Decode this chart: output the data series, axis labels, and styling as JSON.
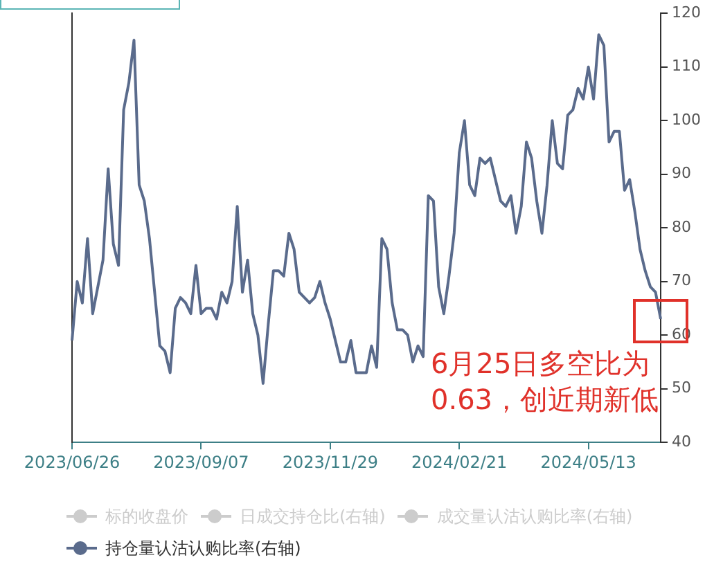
{
  "chart_data": {
    "type": "line",
    "categories": [
      "2023/06/26",
      null,
      null,
      null,
      null,
      null,
      null,
      null,
      null,
      null,
      null,
      null,
      null,
      null,
      null,
      null,
      null,
      null,
      null,
      null,
      null,
      null,
      null,
      null,
      null,
      "2023/09/07",
      null,
      null,
      null,
      null,
      null,
      null,
      null,
      null,
      null,
      null,
      null,
      null,
      null,
      null,
      null,
      null,
      null,
      null,
      null,
      null,
      null,
      null,
      null,
      null,
      "2023/11/29",
      null,
      null,
      null,
      null,
      null,
      null,
      null,
      null,
      null,
      null,
      null,
      null,
      null,
      null,
      null,
      null,
      null,
      null,
      null,
      null,
      null,
      null,
      null,
      null,
      "2024/02/21",
      null,
      null,
      null,
      null,
      null,
      null,
      null,
      null,
      null,
      null,
      null,
      null,
      null,
      null,
      null,
      null,
      null,
      null,
      null,
      null,
      null,
      null,
      null,
      null,
      "2024/05/13",
      null,
      null,
      null,
      null,
      null,
      null,
      null,
      null,
      null,
      null,
      null,
      null,
      null,
      null
    ],
    "series": [
      {
        "name": "标的收盘价",
        "color": "#cccccc",
        "values": [
          null,
          null,
          null,
          null,
          null,
          null,
          null,
          null,
          null,
          null,
          null,
          null,
          null,
          null,
          null,
          null,
          null,
          null,
          null,
          null,
          null,
          null,
          null,
          null,
          null,
          null,
          null,
          null,
          null,
          null,
          null,
          null,
          null,
          null,
          null,
          null,
          null,
          null,
          null,
          null,
          null,
          null,
          null,
          null,
          null,
          null,
          null,
          null,
          null,
          null,
          null,
          null,
          null,
          null,
          null,
          null,
          null,
          null,
          null,
          null,
          null,
          null,
          null,
          null,
          null,
          null,
          null,
          null,
          null,
          null,
          null,
          null,
          null,
          null,
          null,
          null,
          null,
          null,
          null,
          null,
          null,
          null,
          null,
          null,
          null,
          null,
          null,
          null,
          null,
          null,
          null,
          null,
          null,
          null,
          null,
          null,
          null,
          null,
          null,
          null,
          null,
          null,
          null,
          null,
          null,
          null,
          null,
          null,
          null,
          null,
          null,
          null,
          null,
          null,
          null
        ]
      },
      {
        "name": "日成交持仓比(右轴)",
        "color": "#cccccc",
        "axis": "y2",
        "values": [
          null,
          null,
          null,
          null,
          null,
          null,
          null,
          null,
          null,
          null,
          null,
          null,
          null,
          null,
          null,
          null,
          null,
          null,
          null,
          null,
          null,
          null,
          null,
          null,
          null,
          null,
          null,
          null,
          null,
          null,
          null,
          null,
          null,
          null,
          null,
          null,
          null,
          null,
          null,
          null,
          null,
          null,
          null,
          null,
          null,
          null,
          null,
          null,
          null,
          null,
          null,
          null,
          null,
          null,
          null,
          null,
          null,
          null,
          null,
          null,
          null,
          null,
          null,
          null,
          null,
          null,
          null,
          null,
          null,
          null,
          null,
          null,
          null,
          null,
          null,
          null,
          null,
          null,
          null,
          null,
          null,
          null,
          null,
          null,
          null,
          null,
          null,
          null,
          null,
          null,
          null,
          null,
          null,
          null,
          null,
          null,
          null,
          null,
          null,
          null,
          null,
          null,
          null,
          null,
          null,
          null,
          null,
          null,
          null,
          null,
          null,
          null,
          null,
          null,
          null
        ]
      },
      {
        "name": "成交量认沽认购比率(右轴)",
        "color": "#cccccc",
        "axis": "y2",
        "values": [
          null,
          null,
          null,
          null,
          null,
          null,
          null,
          null,
          null,
          null,
          null,
          null,
          null,
          null,
          null,
          null,
          null,
          null,
          null,
          null,
          null,
          null,
          null,
          null,
          null,
          null,
          null,
          null,
          null,
          null,
          null,
          null,
          null,
          null,
          null,
          null,
          null,
          null,
          null,
          null,
          null,
          null,
          null,
          null,
          null,
          null,
          null,
          null,
          null,
          null,
          null,
          null,
          null,
          null,
          null,
          null,
          null,
          null,
          null,
          null,
          null,
          null,
          null,
          null,
          null,
          null,
          null,
          null,
          null,
          null,
          null,
          null,
          null,
          null,
          null,
          null,
          null,
          null,
          null,
          null,
          null,
          null,
          null,
          null,
          null,
          null,
          null,
          null,
          null,
          null,
          null,
          null,
          null,
          null,
          null,
          null,
          null,
          null,
          null,
          null,
          null,
          null,
          null,
          null,
          null,
          null,
          null,
          null,
          null,
          null,
          null,
          null,
          null,
          null,
          null
        ]
      },
      {
        "name": "持仓量认沽认购比率(右轴)",
        "color": "#5a6b8c",
        "axis": "y2",
        "values": [
          59,
          70,
          66,
          78,
          64,
          69,
          74,
          91,
          77,
          73,
          102,
          107,
          115,
          88,
          85,
          78,
          68,
          58,
          57,
          53,
          65,
          67,
          66,
          64,
          73,
          64,
          65,
          65,
          63,
          68,
          66,
          70,
          84,
          68,
          74,
          64,
          60,
          51,
          62,
          72,
          72,
          71,
          79,
          76,
          68,
          67,
          66,
          67,
          70,
          66,
          63,
          59,
          55,
          55,
          59,
          53,
          53,
          53,
          58,
          54,
          78,
          76,
          66,
          61,
          61,
          60,
          55,
          58,
          56,
          86,
          85,
          69,
          64,
          71,
          79,
          94,
          100,
          88,
          86,
          93,
          92,
          93,
          89,
          85,
          84,
          86,
          79,
          84,
          96,
          93,
          85,
          79,
          88,
          100,
          92,
          91,
          101,
          102,
          106,
          104,
          110,
          104,
          116,
          114,
          96,
          98,
          98,
          87,
          89,
          83,
          76,
          72,
          69,
          68,
          63
        ]
      }
    ],
    "y2lim": [
      40,
      120
    ],
    "y2ticks": [
      40,
      50,
      60,
      70,
      80,
      90,
      100,
      110,
      120
    ],
    "marker": "none",
    "grid": false,
    "legend": "bottom",
    "annotations": [
      "6月25日多空比为\n0.63，创近期新低"
    ]
  }
}
